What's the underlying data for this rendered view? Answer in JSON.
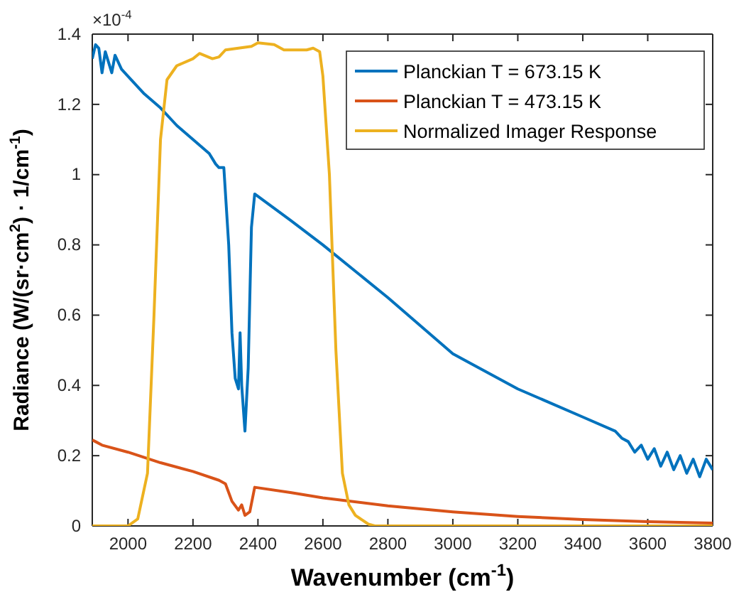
{
  "chart_data": {
    "type": "line",
    "xlabel": "Wavenumber (cm$^{-1}$)",
    "ylabel": "Radiance (W/(sr·cm$^{2}$) · 1/cm$^{-1}$)",
    "annotations": [
      "×10$^{-4}$"
    ],
    "xlim": [
      1890,
      3800
    ],
    "xticks": [
      2000,
      2200,
      2400,
      2600,
      2800,
      3000,
      3200,
      3400,
      3600,
      3800
    ],
    "ylim": [
      0,
      1.4
    ],
    "yticks": [
      0,
      0.2,
      0.4,
      0.6,
      0.8,
      {
        "value": 1,
        "label": "1"
      },
      1.2,
      1.4
    ],
    "legend": "top right",
    "grid": false,
    "line_style": "solid",
    "series": [
      {
        "name": "Planckian T = 673.15 K",
        "color": "#0072bd",
        "x": [
          1890,
          1900,
          1910,
          1920,
          1930,
          1950,
          1960,
          1980,
          2000,
          2050,
          2100,
          2150,
          2200,
          2250,
          2270,
          2280,
          2295,
          2310,
          2320,
          2330,
          2340,
          2345,
          2350,
          2360,
          2370,
          2380,
          2390,
          2500,
          2600,
          2800,
          3000,
          3200,
          3400,
          3500,
          3520,
          3540,
          3560,
          3580,
          3600,
          3620,
          3640,
          3660,
          3680,
          3700,
          3720,
          3740,
          3760,
          3780,
          3800
        ],
        "values": [
          1.33,
          1.37,
          1.36,
          1.29,
          1.35,
          1.29,
          1.34,
          1.3,
          1.28,
          1.23,
          1.19,
          1.14,
          1.1,
          1.06,
          1.03,
          1.02,
          1.02,
          0.8,
          0.55,
          0.42,
          0.39,
          0.55,
          0.4,
          0.27,
          0.45,
          0.85,
          0.945,
          0.87,
          0.8,
          0.65,
          0.49,
          0.39,
          0.31,
          0.27,
          0.25,
          0.24,
          0.21,
          0.23,
          0.19,
          0.22,
          0.17,
          0.21,
          0.16,
          0.2,
          0.15,
          0.19,
          0.14,
          0.19,
          0.16
        ]
      },
      {
        "name": "Planckian T = 473.15 K",
        "color": "#d95319",
        "x": [
          1890,
          1900,
          1920,
          2000,
          2100,
          2200,
          2280,
          2300,
          2320,
          2340,
          2350,
          2360,
          2375,
          2390,
          2500,
          2600,
          2800,
          3000,
          3200,
          3400,
          3600,
          3800
        ],
        "values": [
          0.245,
          0.24,
          0.23,
          0.21,
          0.18,
          0.155,
          0.13,
          0.12,
          0.07,
          0.045,
          0.06,
          0.03,
          0.04,
          0.11,
          0.095,
          0.08,
          0.057,
          0.04,
          0.027,
          0.018,
          0.012,
          0.008
        ]
      },
      {
        "name": "Normalized Imager Response",
        "color": "#edb120",
        "x": [
          1890,
          2000,
          2030,
          2060,
          2080,
          2100,
          2120,
          2150,
          2200,
          2220,
          2260,
          2280,
          2300,
          2380,
          2400,
          2450,
          2480,
          2550,
          2570,
          2590,
          2600,
          2620,
          2640,
          2660,
          2680,
          2700,
          2740,
          2760,
          3800
        ],
        "values": [
          0,
          0,
          0.02,
          0.15,
          0.6,
          1.1,
          1.27,
          1.31,
          1.33,
          1.345,
          1.33,
          1.335,
          1.355,
          1.365,
          1.375,
          1.37,
          1.355,
          1.355,
          1.36,
          1.35,
          1.28,
          1.0,
          0.5,
          0.15,
          0.06,
          0.03,
          0.005,
          0,
          0
        ]
      }
    ]
  }
}
